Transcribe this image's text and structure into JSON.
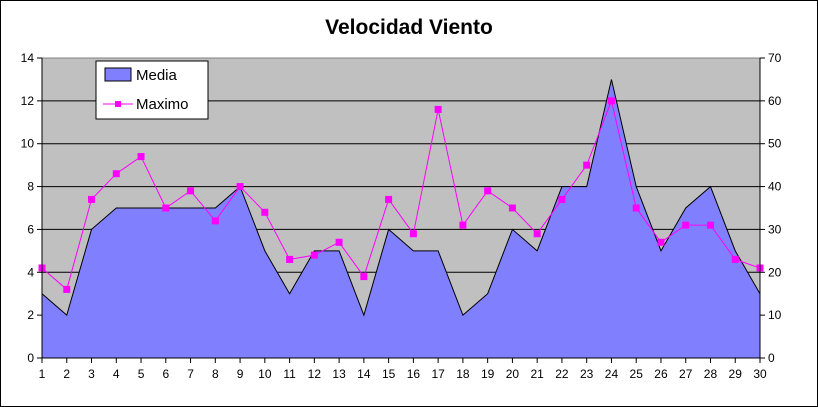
{
  "chart_data": {
    "type": "area",
    "title": "Velocidad Viento",
    "x": [
      1,
      2,
      3,
      4,
      5,
      6,
      7,
      8,
      9,
      10,
      11,
      12,
      13,
      14,
      15,
      16,
      17,
      18,
      19,
      20,
      21,
      22,
      23,
      24,
      25,
      26,
      27,
      28,
      29,
      30
    ],
    "series": [
      {
        "name": "Media",
        "type": "area",
        "axis": "left",
        "values": [
          3,
          2,
          6,
          7,
          7,
          7,
          7,
          7,
          8,
          5,
          3,
          5,
          5,
          2,
          6,
          5,
          5,
          2,
          3,
          6,
          5,
          8,
          8,
          13,
          8,
          5,
          7,
          8,
          5,
          3
        ]
      },
      {
        "name": "Maximo",
        "type": "line",
        "axis": "right",
        "values": [
          21,
          16,
          37,
          43,
          47,
          35,
          39,
          32,
          40,
          34,
          23,
          24,
          27,
          19,
          37,
          29,
          58,
          31,
          39,
          35,
          29,
          37,
          45,
          60,
          35,
          27,
          31,
          31,
          23,
          21
        ]
      }
    ],
    "y_left": {
      "min": 0,
      "max": 14,
      "ticks": [
        0,
        2,
        4,
        6,
        8,
        10,
        12,
        14
      ]
    },
    "y_right": {
      "min": 0,
      "max": 70,
      "ticks": [
        0,
        10,
        20,
        30,
        40,
        50,
        60,
        70
      ]
    },
    "legend": "top-left",
    "colors": {
      "plot_bg": "#c0c0c0",
      "area": "#8080ff",
      "line": "#ff00ff"
    }
  }
}
